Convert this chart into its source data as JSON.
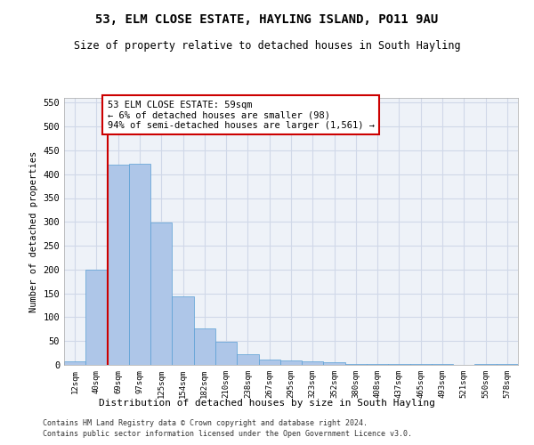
{
  "title": "53, ELM CLOSE ESTATE, HAYLING ISLAND, PO11 9AU",
  "subtitle": "Size of property relative to detached houses in South Hayling",
  "xlabel": "Distribution of detached houses by size in South Hayling",
  "ylabel": "Number of detached properties",
  "bar_labels": [
    "12sqm",
    "40sqm",
    "69sqm",
    "97sqm",
    "125sqm",
    "154sqm",
    "182sqm",
    "210sqm",
    "238sqm",
    "267sqm",
    "295sqm",
    "323sqm",
    "352sqm",
    "380sqm",
    "408sqm",
    "437sqm",
    "465sqm",
    "493sqm",
    "521sqm",
    "550sqm",
    "578sqm"
  ],
  "bar_values": [
    8,
    200,
    420,
    422,
    298,
    143,
    77,
    48,
    23,
    12,
    10,
    8,
    5,
    2,
    1,
    1,
    1,
    1,
    0,
    1,
    2
  ],
  "bar_color": "#aec6e8",
  "bar_edge_color": "#5a9fd4",
  "grid_color": "#d0d8e8",
  "bg_color": "#eef2f8",
  "red_line_x": 1.5,
  "annotation_text": "53 ELM CLOSE ESTATE: 59sqm\n← 6% of detached houses are smaller (98)\n94% of semi-detached houses are larger (1,561) →",
  "annotation_box_color": "#cc0000",
  "ylim": [
    0,
    560
  ],
  "yticks": [
    0,
    50,
    100,
    150,
    200,
    250,
    300,
    350,
    400,
    450,
    500,
    550
  ],
  "footer_line1": "Contains HM Land Registry data © Crown copyright and database right 2024.",
  "footer_line2": "Contains public sector information licensed under the Open Government Licence v3.0."
}
